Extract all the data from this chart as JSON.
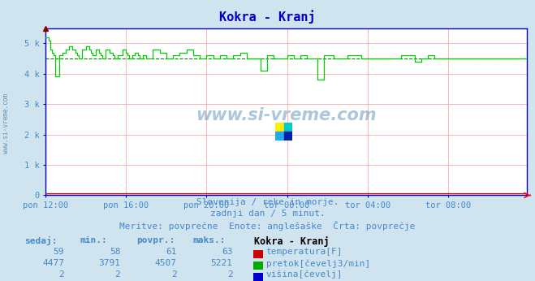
{
  "title": "Kokra - Kranj",
  "title_color": "#0000cc",
  "bg_color": "#d0e4f0",
  "plot_bg_color": "#ffffff",
  "grid_color": "#ffaaaa",
  "axis_color": "#0000cc",
  "text_color": "#4488cc",
  "watermark": "www.si-vreme.com",
  "subtitle1": "Slovenija / reke in morje.",
  "subtitle2": "zadnji dan / 5 minut.",
  "subtitle3": "Meritve: povprečne  Enote: anglešaške  Črta: povprečje",
  "xlabel_ticks": [
    "pon 12:00",
    "pon 16:00",
    "pon 20:00",
    "tor 00:00",
    "tor 04:00",
    "tor 08:00"
  ],
  "ylim": [
    0,
    5500
  ],
  "yticks": [
    0,
    1000,
    2000,
    3000,
    4000,
    5000
  ],
  "ytick_labels": [
    "0",
    "1 k",
    "2 k",
    "3 k",
    "4 k",
    "5 k"
  ],
  "avg_line": 4507,
  "temp_sedaj": 59,
  "temp_min": 58,
  "temp_povpr": 61,
  "temp_maks": 63,
  "pretok_sedaj": 4477,
  "pretok_min": 3791,
  "pretok_povpr": 4507,
  "pretok_maks": 5221,
  "visina_sedaj": 2,
  "visina_min": 2,
  "visina_povpr": 2,
  "visina_maks": 2,
  "legend_title": "Kokra - Kranj",
  "legend_items": [
    {
      "label": "temperatura[F]",
      "color": "#cc0000"
    },
    {
      "label": "pretok[čevelj3/min]",
      "color": "#00aa00"
    },
    {
      "label": "višina[čevelj]",
      "color": "#0000cc"
    }
  ],
  "sidebar_text": "www.si-vreme.com",
  "sidebar_color": "#5588aa",
  "flow_line_color": "#00cc00",
  "avg_line_color": "#008800",
  "temp_line_color": "#cc0000",
  "height_line_color": "#0000cc"
}
